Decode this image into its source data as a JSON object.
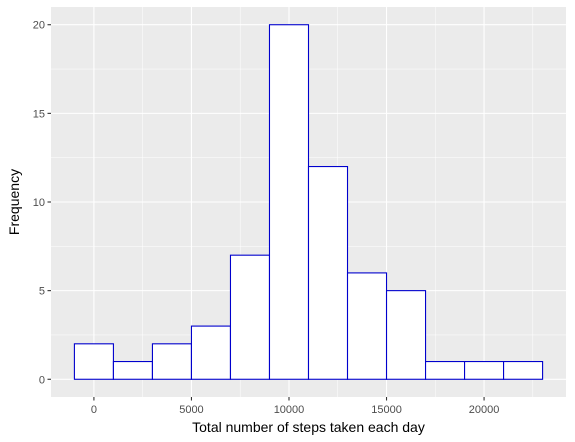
{
  "chart_data": {
    "type": "bar",
    "title": "",
    "xlabel": "Total number of steps taken each day",
    "ylabel": "Frequency",
    "bins": [
      {
        "x0": -1000,
        "x1": 1000,
        "count": 2
      },
      {
        "x0": 1000,
        "x1": 3000,
        "count": 1
      },
      {
        "x0": 3000,
        "x1": 5000,
        "count": 2
      },
      {
        "x0": 5000,
        "x1": 7000,
        "count": 3
      },
      {
        "x0": 7000,
        "x1": 9000,
        "count": 7
      },
      {
        "x0": 9000,
        "x1": 11000,
        "count": 20
      },
      {
        "x0": 11000,
        "x1": 13000,
        "count": 12
      },
      {
        "x0": 13000,
        "x1": 15000,
        "count": 6
      },
      {
        "x0": 15000,
        "x1": 17000,
        "count": 5
      },
      {
        "x0": 17000,
        "x1": 19000,
        "count": 1
      },
      {
        "x0": 19000,
        "x1": 21000,
        "count": 1
      },
      {
        "x0": 21000,
        "x1": 23000,
        "count": 1
      }
    ],
    "xlim": [
      -2200,
      24200
    ],
    "ylim": [
      -1,
      21
    ],
    "x_ticks": [
      0,
      5000,
      10000,
      15000,
      20000
    ],
    "x_tick_labels": [
      "0",
      "5000",
      "10000",
      "15000",
      "20000"
    ],
    "y_ticks": [
      0,
      5,
      10,
      15,
      20
    ],
    "y_tick_labels": [
      "0",
      "5",
      "10",
      "15",
      "20"
    ],
    "grid": true,
    "colors": {
      "panel_background": "#ebebeb",
      "grid_major": "#ffffff",
      "bar_fill": "#ffffff",
      "bar_outline": "#0000cd",
      "tick_text": "#4d4d4d",
      "tick_mark": "#333333"
    }
  }
}
